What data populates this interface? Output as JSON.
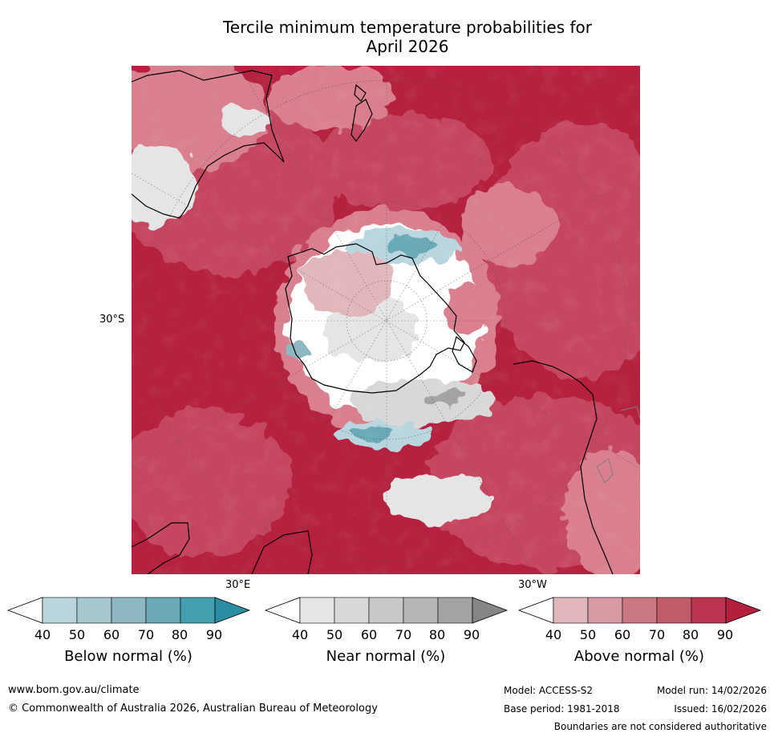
{
  "title": {
    "line1": "Tercile minimum temperature probabilities for",
    "line2": "April 2026"
  },
  "map": {
    "lat_label": "30°S",
    "lon_label_east": "30°E",
    "lon_label_west": "30°W",
    "base_colors": {
      "above_dark": "#b5213e",
      "above_mid": "#c5465e",
      "above_light": "#d97f8d",
      "near_light": "#e5e5e5",
      "below_light": "#b9d6de"
    }
  },
  "legends": [
    {
      "label": "Below normal (%)",
      "ticks": [
        "40",
        "50",
        "60",
        "70",
        "80",
        "90"
      ],
      "colors": [
        "#bad5dc",
        "#a5c7ce",
        "#8cb7c3",
        "#6ba9b6",
        "#44a0b1",
        "#2a8ea3"
      ]
    },
    {
      "label": "Near normal (%)",
      "ticks": [
        "40",
        "50",
        "60",
        "70",
        "80",
        "90"
      ],
      "colors": [
        "#e6e6e6",
        "#d8d8d8",
        "#c8c8c8",
        "#b6b6b6",
        "#a3a3a3",
        "#858585"
      ]
    },
    {
      "label": "Above normal (%)",
      "ticks": [
        "40",
        "50",
        "60",
        "70",
        "80",
        "90"
      ],
      "colors": [
        "#e2b7bc",
        "#d69aa2",
        "#cc7882",
        "#c15c6b",
        "#bb3550",
        "#b41f3d"
      ]
    }
  ],
  "footer": {
    "website": "www.bom.gov.au/climate",
    "copyright": "© Commonwealth of Australia 2026, Australian Bureau of Meteorology",
    "model": "Model: ACCESS-S2",
    "base_period": "Base period: 1981-2018",
    "model_run": "Model run: 14/02/2026",
    "issued": "Issued: 16/02/2026",
    "disclaimer": "Boundaries are not considered authoritative"
  }
}
